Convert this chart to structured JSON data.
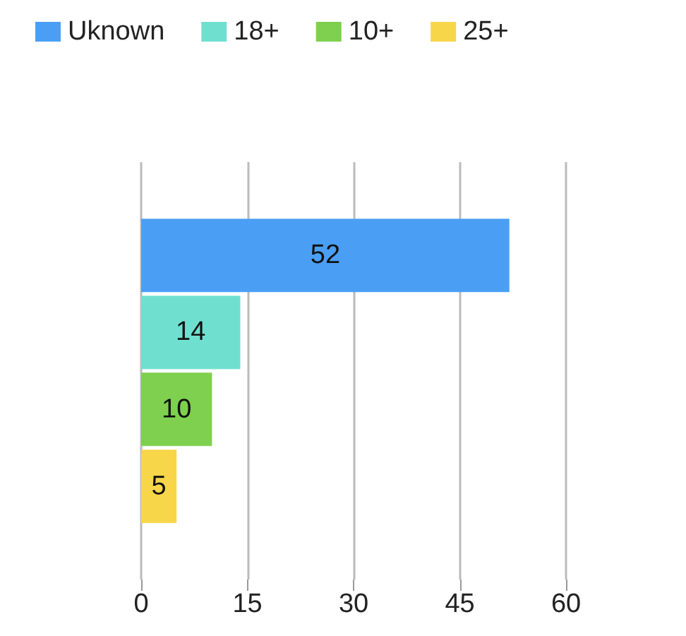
{
  "chart_data": {
    "type": "bar",
    "orientation": "horizontal",
    "categories": [
      null
    ],
    "series": [
      {
        "name": "Uknown",
        "color": "#4a9ff5",
        "values": [
          52
        ]
      },
      {
        "name": "18+",
        "color": "#6fe0d0",
        "values": [
          14
        ]
      },
      {
        "name": "10+",
        "color": "#7ed04e",
        "values": [
          10
        ]
      },
      {
        "name": "25+",
        "color": "#f7d64a",
        "values": [
          5
        ]
      }
    ],
    "xlim": [
      0,
      60
    ],
    "xticks": [
      0,
      15,
      30,
      45,
      60
    ],
    "grid": "x",
    "legend": "top left",
    "data_labels": true
  }
}
